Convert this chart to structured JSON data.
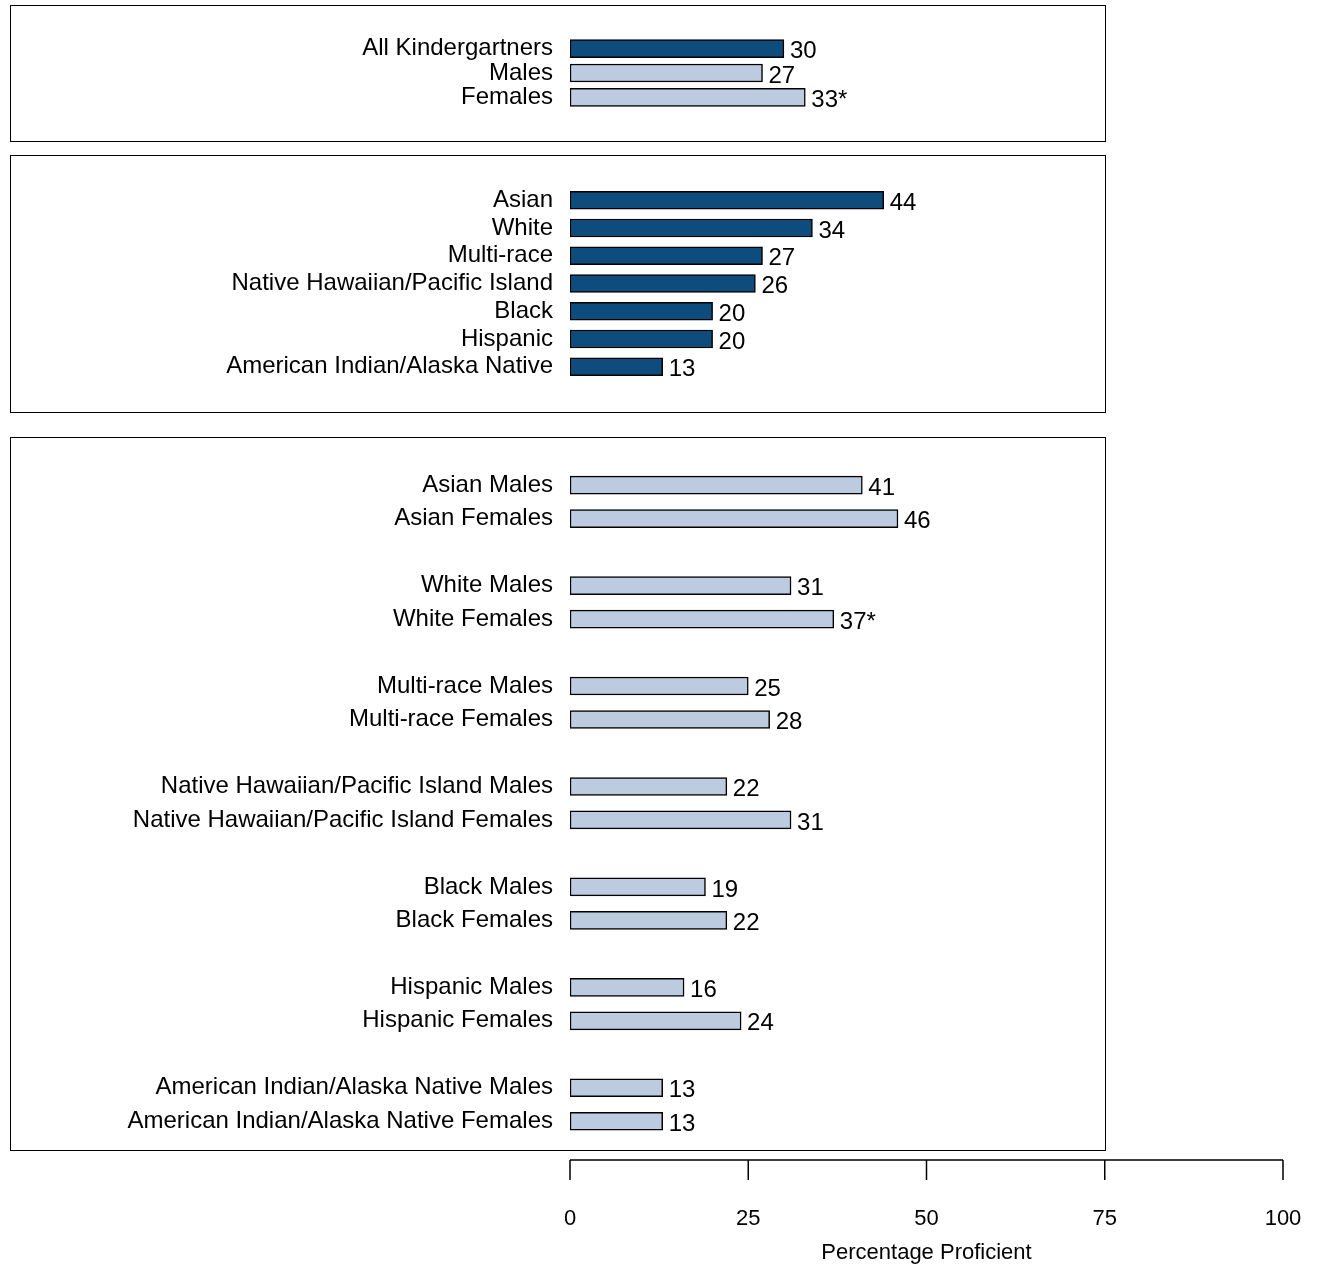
{
  "chart_data": [
    {
      "type": "bar",
      "orientation": "horizontal",
      "categories": [
        "All Kindergartners",
        "Males",
        "Females"
      ],
      "values": [
        30,
        27,
        33
      ],
      "colors": [
        "#0e4c7d",
        "#bccbe0",
        "#bccbe0"
      ],
      "value_labels": [
        "30",
        "27",
        "33*"
      ],
      "xlim": [
        0,
        100
      ],
      "tick_labels": "y"
    },
    {
      "type": "bar",
      "orientation": "horizontal",
      "categories": [
        "Asian",
        "White",
        "Multi-race",
        "Native Hawaiian/Pacific Island",
        "Black",
        "Hispanic",
        "American Indian/Alaska Native"
      ],
      "values": [
        44,
        34,
        27,
        26,
        20,
        20,
        13
      ],
      "colors": [
        "#0e4c7d",
        "#0e4c7d",
        "#0e4c7d",
        "#0e4c7d",
        "#0e4c7d",
        "#0e4c7d",
        "#0e4c7d"
      ],
      "value_labels": [
        "44",
        "34",
        "27",
        "26",
        "20",
        "20",
        "13"
      ],
      "xlim": [
        0,
        100
      ],
      "tick_labels": "y"
    },
    {
      "type": "bar",
      "orientation": "horizontal",
      "categories": [
        "Asian Males",
        "Asian Females",
        null,
        "White Males",
        "White Females",
        null,
        "Multi-race Males",
        "Multi-race Females",
        null,
        "Native Hawaiian/Pacific Island Males",
        "Native Hawaiian/Pacific Island Females",
        null,
        "Black Males",
        "Black Females",
        null,
        "Hispanic Males",
        "Hispanic Females",
        null,
        "American Indian/Alaska Native Males",
        "American Indian/Alaska Native Females"
      ],
      "values": [
        41,
        46,
        null,
        31,
        37,
        null,
        25,
        28,
        null,
        22,
        31,
        null,
        19,
        22,
        null,
        16,
        24,
        null,
        13,
        13
      ],
      "colors": [
        "#bccbe0",
        "#bccbe0",
        null,
        "#bccbe0",
        "#bccbe0",
        null,
        "#bccbe0",
        "#bccbe0",
        null,
        "#bccbe0",
        "#bccbe0",
        null,
        "#bccbe0",
        "#bccbe0",
        null,
        "#bccbe0",
        "#bccbe0",
        null,
        "#bccbe0",
        "#bccbe0"
      ],
      "value_labels": [
        "41",
        "46",
        null,
        "31",
        "37*",
        null,
        "25",
        "28",
        null,
        "22",
        "31",
        null,
        "19",
        "22",
        null,
        "16",
        "24",
        null,
        "13",
        "13"
      ],
      "xlim": [
        0,
        100
      ],
      "xticks": [
        0,
        25,
        50,
        75,
        100
      ],
      "xlabel": "Percentage Proficient"
    }
  ]
}
